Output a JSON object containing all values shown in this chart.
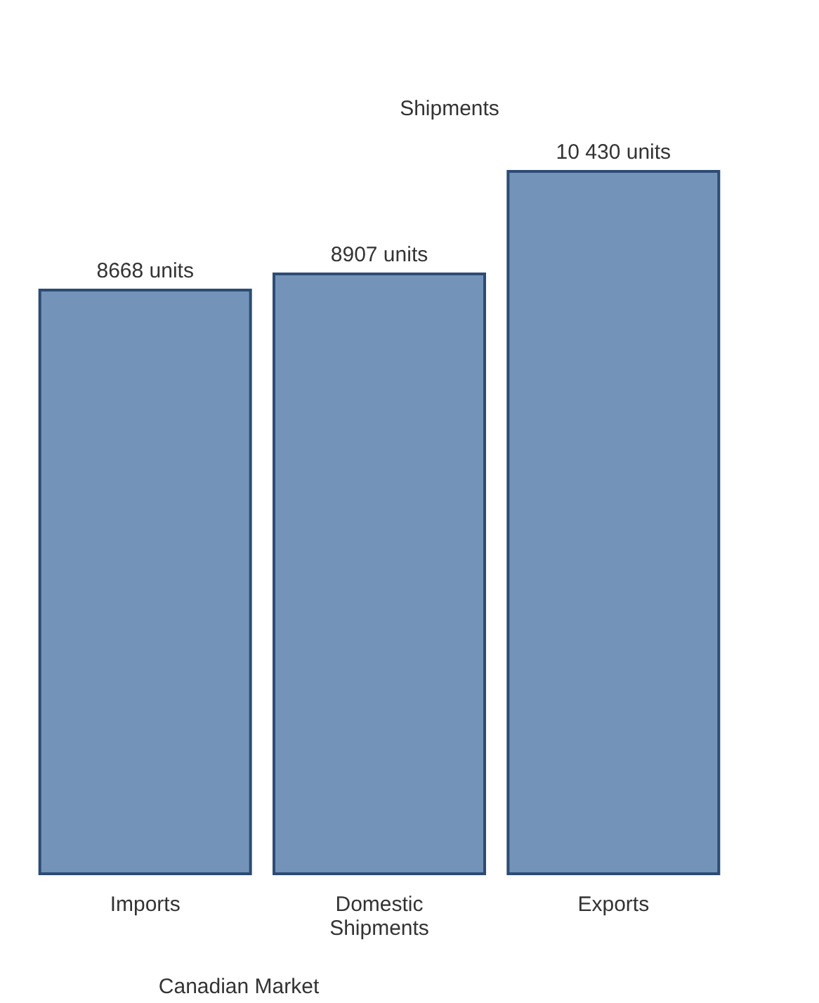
{
  "chart_data": {
    "type": "bar",
    "categories": [
      "Imports",
      "Domestic Shipments",
      "Exports"
    ],
    "values": [
      8668,
      8907,
      10430
    ],
    "value_labels": [
      "8668 units",
      "8907 units",
      "10 430 units"
    ],
    "color": "#7393b8",
    "annotations": [
      "Shipments",
      "Canadian Market"
    ],
    "grid": false
  }
}
